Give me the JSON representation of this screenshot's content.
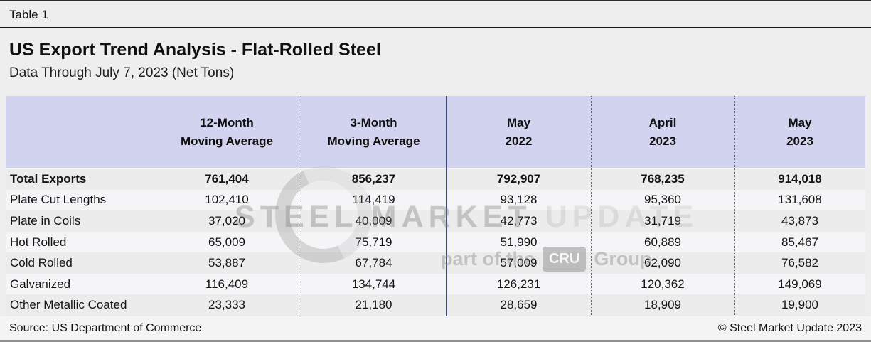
{
  "meta": {
    "table_label": "Table 1",
    "title": "US Export Trend Analysis - Flat-Rolled Steel",
    "subtitle": "Data Through July 7, 2023 (Net Tons)",
    "source": "Source: US Department of Commerce",
    "copyright": "© Steel Market Update 2023"
  },
  "chart_data": {
    "type": "table",
    "title": "US Export Trend Analysis - Flat-Rolled Steel",
    "subtitle": "Data Through July 7, 2023 (Net Tons)",
    "units": "Net Tons",
    "columns": [
      "",
      "12-Month Moving Average",
      "3-Month Moving Average",
      "May 2022",
      "April 2023",
      "May 2023"
    ],
    "columns_lines": [
      [
        "",
        ""
      ],
      [
        "12-Month",
        "Moving Average"
      ],
      [
        "3-Month",
        "Moving Average"
      ],
      [
        "May",
        "2022"
      ],
      [
        "April",
        "2023"
      ],
      [
        "May",
        "2023"
      ]
    ],
    "rows": [
      {
        "label": "Total Exports",
        "bold": true,
        "values": [
          761404,
          856237,
          792907,
          768235,
          914018
        ]
      },
      {
        "label": "Plate Cut Lengths",
        "bold": false,
        "values": [
          102410,
          114419,
          93128,
          95360,
          131608
        ]
      },
      {
        "label": "Plate in Coils",
        "bold": false,
        "values": [
          37020,
          40009,
          42773,
          31719,
          43873
        ]
      },
      {
        "label": "Hot Rolled",
        "bold": false,
        "values": [
          65009,
          75719,
          51990,
          60889,
          85467
        ]
      },
      {
        "label": "Cold Rolled",
        "bold": false,
        "values": [
          53887,
          67784,
          57009,
          62090,
          76582
        ]
      },
      {
        "label": "Galvanized",
        "bold": false,
        "values": [
          116409,
          134744,
          126231,
          120362,
          149069
        ]
      },
      {
        "label": "Other Metallic Coated",
        "bold": false,
        "values": [
          23333,
          21180,
          28659,
          18909,
          19900
        ]
      }
    ],
    "source": "Source: US Department of Commerce",
    "legend_position": "none",
    "grid": "column-separators"
  },
  "watermark": {
    "line1_strong": "STEEL MARKET",
    "line1_light": "UPDATE",
    "line2_pre": "part of the",
    "line2_box": "CRU",
    "line2_post": "Group"
  },
  "colors": {
    "page_bg": "#eeeeee",
    "header_bg": "#d2d4ef",
    "row_odd": "#ececec",
    "row_even": "#f5f5f7",
    "separator_solid": "#3d4a7d",
    "separator_dotted": "#5d5d7c",
    "text": "#141414",
    "footer_rule": "#8f8f8f"
  }
}
